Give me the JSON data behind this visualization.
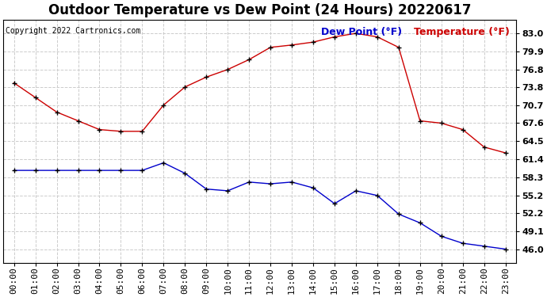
{
  "title": "Outdoor Temperature vs Dew Point (24 Hours) 20220617",
  "copyright": "Copyright 2022 Cartronics.com",
  "legend_dew": "Dew Point (°F)",
  "legend_temp": "Temperature (°F)",
  "hours": [
    "00:00",
    "01:00",
    "02:00",
    "03:00",
    "04:00",
    "05:00",
    "06:00",
    "07:00",
    "08:00",
    "09:00",
    "10:00",
    "11:00",
    "12:00",
    "13:00",
    "14:00",
    "15:00",
    "16:00",
    "17:00",
    "18:00",
    "19:00",
    "20:00",
    "21:00",
    "22:00",
    "23:00"
  ],
  "temperature": [
    74.5,
    72.0,
    69.5,
    68.0,
    66.5,
    66.2,
    66.2,
    70.7,
    73.8,
    75.5,
    76.8,
    78.5,
    80.6,
    81.0,
    81.5,
    82.4,
    83.0,
    82.4,
    80.6,
    68.0,
    67.6,
    66.5,
    63.5,
    62.5
  ],
  "dew_point": [
    59.5,
    59.5,
    59.5,
    59.5,
    59.5,
    59.5,
    59.5,
    60.8,
    59.0,
    56.3,
    56.0,
    57.5,
    57.2,
    57.5,
    56.5,
    53.8,
    56.0,
    55.2,
    52.0,
    50.5,
    48.2,
    47.0,
    46.5,
    46.0
  ],
  "temp_color": "#cc0000",
  "dew_color": "#0000cc",
  "marker_color": "#000000",
  "ylim_min": 43.69,
  "ylim_max": 85.31,
  "yticks": [
    46.0,
    49.1,
    52.2,
    55.2,
    58.3,
    61.4,
    64.5,
    67.6,
    70.7,
    73.8,
    76.8,
    79.9,
    83.0
  ],
  "ytick_labels": [
    "46.0",
    "49.1",
    "52.2",
    "55.2",
    "58.3",
    "61.4",
    "64.5",
    "67.6",
    "70.7",
    "73.8",
    "76.8",
    "79.9",
    "83.0"
  ],
  "bg_color": "#ffffff",
  "grid_color": "#cccccc",
  "border_color": "#000000",
  "title_fontsize": 12,
  "legend_fontsize": 9,
  "tick_fontsize": 8,
  "copyright_fontsize": 7
}
